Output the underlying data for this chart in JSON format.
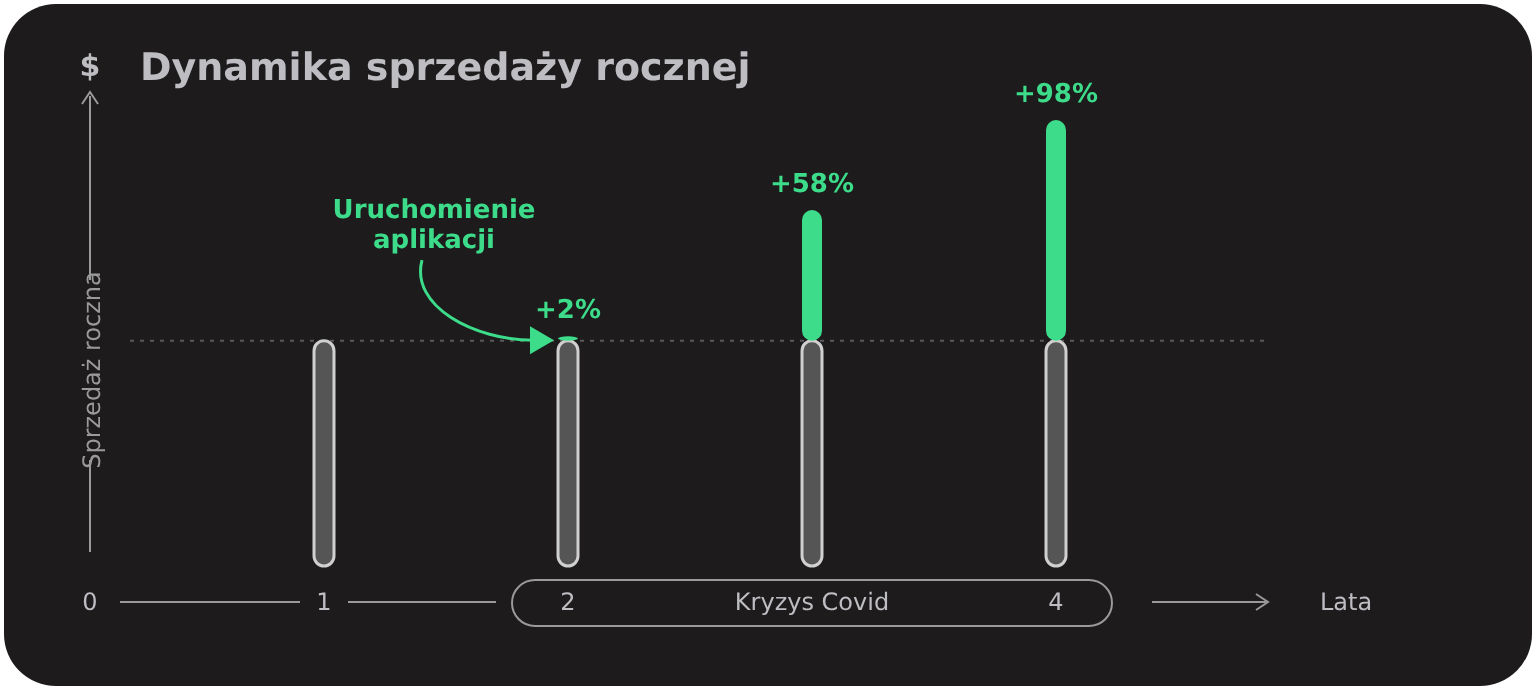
{
  "chart_data": {
    "type": "bar",
    "title": "Dynamika sprzedaży rocznej",
    "xlabel": "Lata",
    "ylabel": "Sprzedaż roczna",
    "stacked": true,
    "categories": [
      "1",
      "2",
      "Kryzys Covid",
      "4"
    ],
    "series": [
      {
        "color": "#555555",
        "values": [
          100,
          100,
          100,
          100
        ]
      },
      {
        "color": "#3ddc8a",
        "values": [
          null,
          2,
          58,
          98
        ],
        "value_labels": [
          null,
          "+2%",
          "+58%",
          "+98%"
        ]
      }
    ],
    "ref_lines": [
      {
        "axis": "y",
        "value": 100,
        "line_style": "dotted",
        "color": "#5a5a5a"
      }
    ],
    "annotations": [
      "Uruchomienie aplikacji",
      "$",
      "0"
    ]
  }
}
